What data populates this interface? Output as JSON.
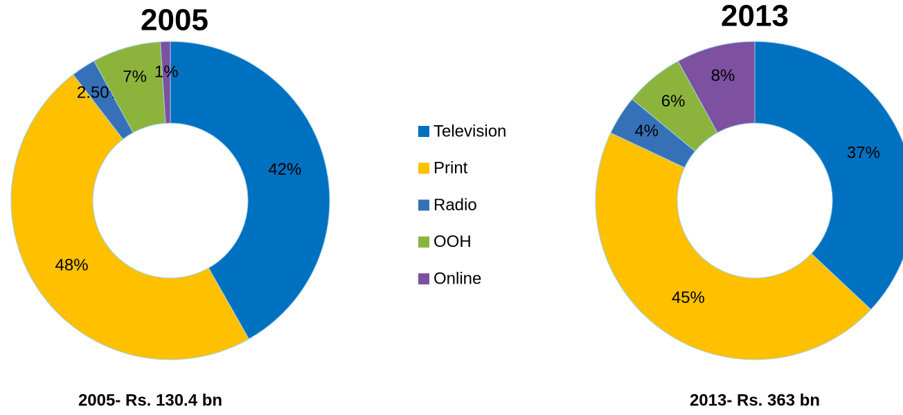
{
  "chart_data": [
    {
      "type": "donut",
      "title": "2005",
      "subtitle": "2005- Rs. 130.4 bn",
      "categories": [
        "Television",
        "Print",
        "Radio",
        "OOH",
        "Online"
      ],
      "values": [
        42,
        48,
        2.5,
        7,
        1
      ],
      "value_labels": [
        "42%",
        "48%",
        "2.50%",
        "7%",
        "1%"
      ],
      "colors": [
        "#0070c0",
        "#ffc000",
        "#3671b8",
        "#8cb43c",
        "#7d50a0"
      ]
    },
    {
      "type": "donut",
      "title": "2013",
      "subtitle": "2013- Rs. 363 bn",
      "categories": [
        "Television",
        "Print",
        "Radio",
        "OOH",
        "Online"
      ],
      "values": [
        37,
        45,
        4,
        6,
        8
      ],
      "value_labels": [
        "37%",
        "45%",
        "4%",
        "6%",
        "8%"
      ],
      "colors": [
        "#0070c0",
        "#ffc000",
        "#3671b8",
        "#8cb43c",
        "#7d50a0"
      ]
    }
  ]
}
